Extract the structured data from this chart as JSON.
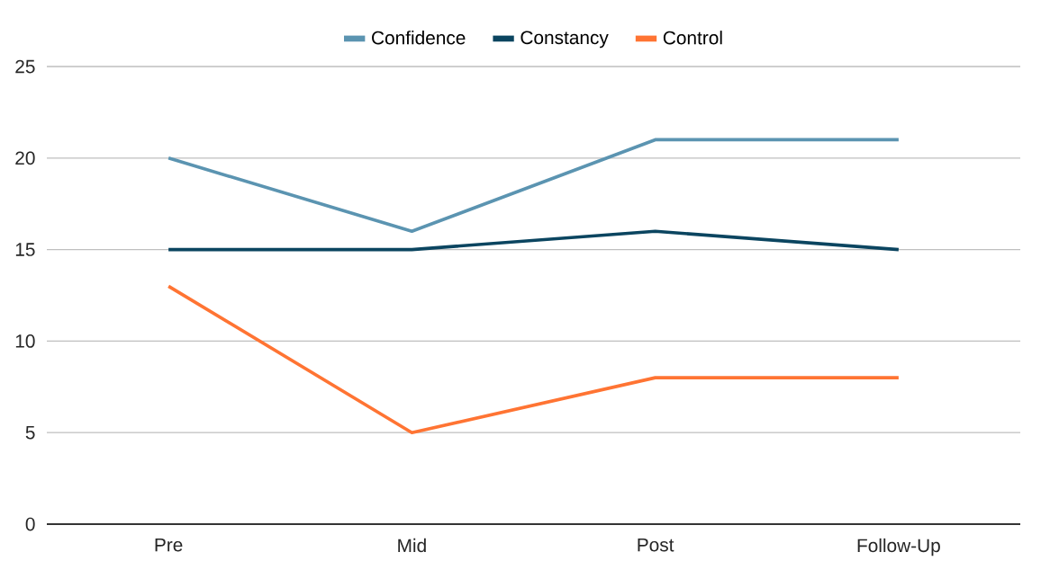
{
  "chart_data": {
    "type": "line",
    "categories": [
      "Pre",
      "Mid",
      "Post",
      "Follow-Up"
    ],
    "series": [
      {
        "name": "Confidence",
        "color": "#5b94b1",
        "values": [
          20,
          16,
          21,
          21
        ]
      },
      {
        "name": "Constancy",
        "color": "#0b4560",
        "values": [
          15,
          15,
          16,
          15
        ]
      },
      {
        "name": "Control",
        "color": "#ff7433",
        "values": [
          13,
          5,
          8,
          8
        ]
      }
    ],
    "ylim": [
      0,
      25
    ],
    "yticks": [
      0,
      5,
      10,
      15,
      20,
      25
    ],
    "grid": "y",
    "legend": "top"
  }
}
